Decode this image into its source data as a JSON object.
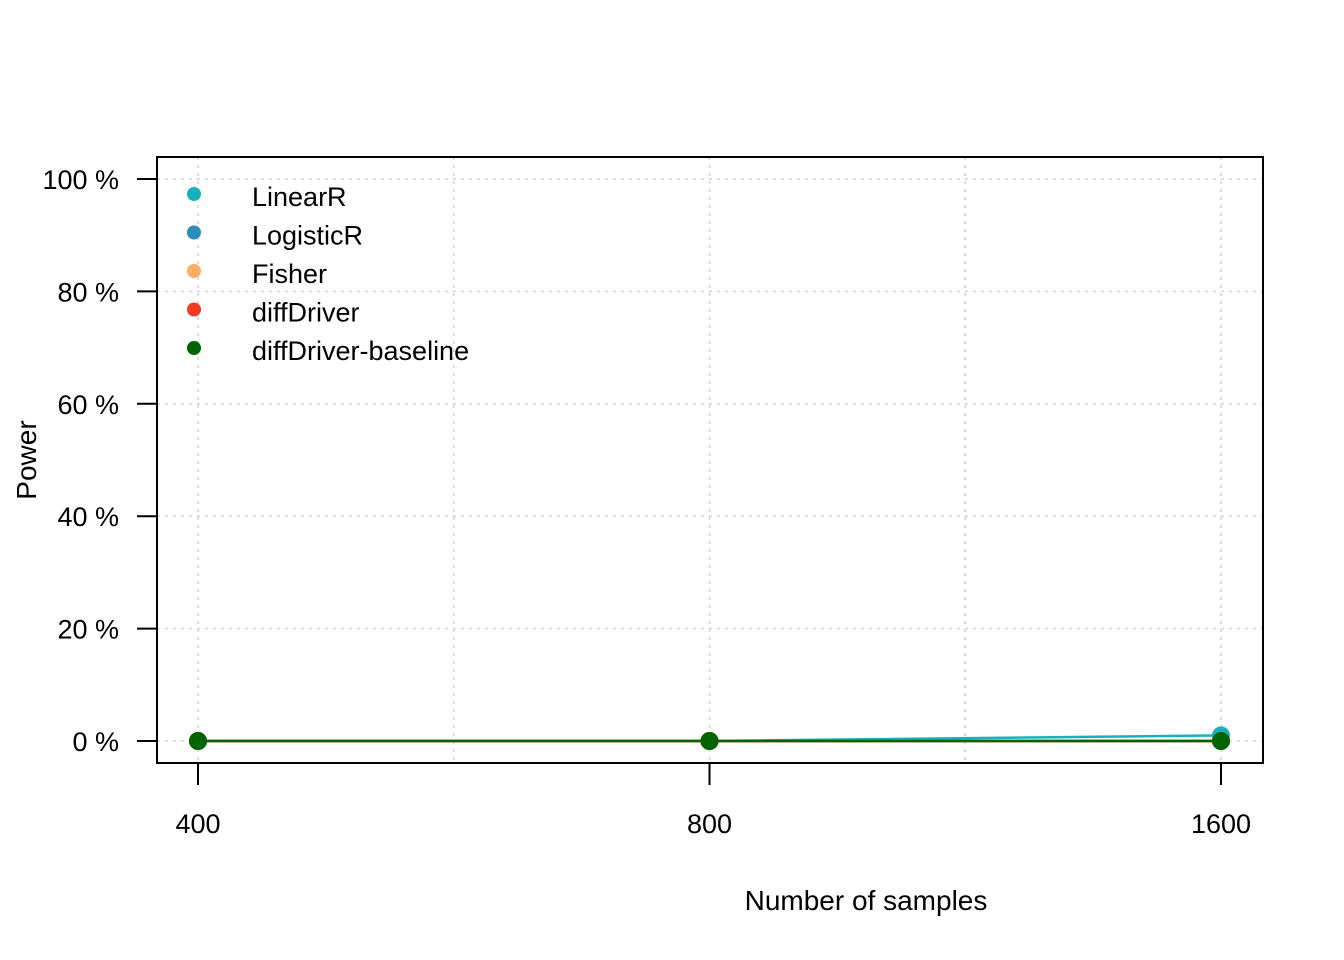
{
  "chart_data": {
    "type": "line",
    "title": "",
    "xlabel": "Number of samples",
    "ylabel": "Power",
    "x": [
      400,
      800,
      1600
    ],
    "x_tick_labels": [
      "400",
      "800",
      "1600"
    ],
    "x_scale": "log",
    "ylim": [
      0,
      100
    ],
    "y_ticks": [
      0,
      20,
      40,
      60,
      80,
      100
    ],
    "y_tick_labels": [
      "0 %",
      "20 %",
      "40 %",
      "60 %",
      "80 %",
      "100 %"
    ],
    "grid": true,
    "legend_position": "top-left",
    "series": [
      {
        "name": "LinearR",
        "color": "#17B1BE",
        "values": [
          0,
          0,
          1
        ]
      },
      {
        "name": "LogisticR",
        "color": "#2B8CBE",
        "values": [
          0,
          0,
          0
        ]
      },
      {
        "name": "Fisher",
        "color": "#FDAE61",
        "values": [
          0,
          0,
          0
        ]
      },
      {
        "name": "diffDriver",
        "color": "#F03B20",
        "values": [
          0,
          0,
          0
        ]
      },
      {
        "name": "diffDriver-baseline",
        "color": "#006400",
        "values": [
          0,
          0,
          0
        ]
      }
    ]
  }
}
